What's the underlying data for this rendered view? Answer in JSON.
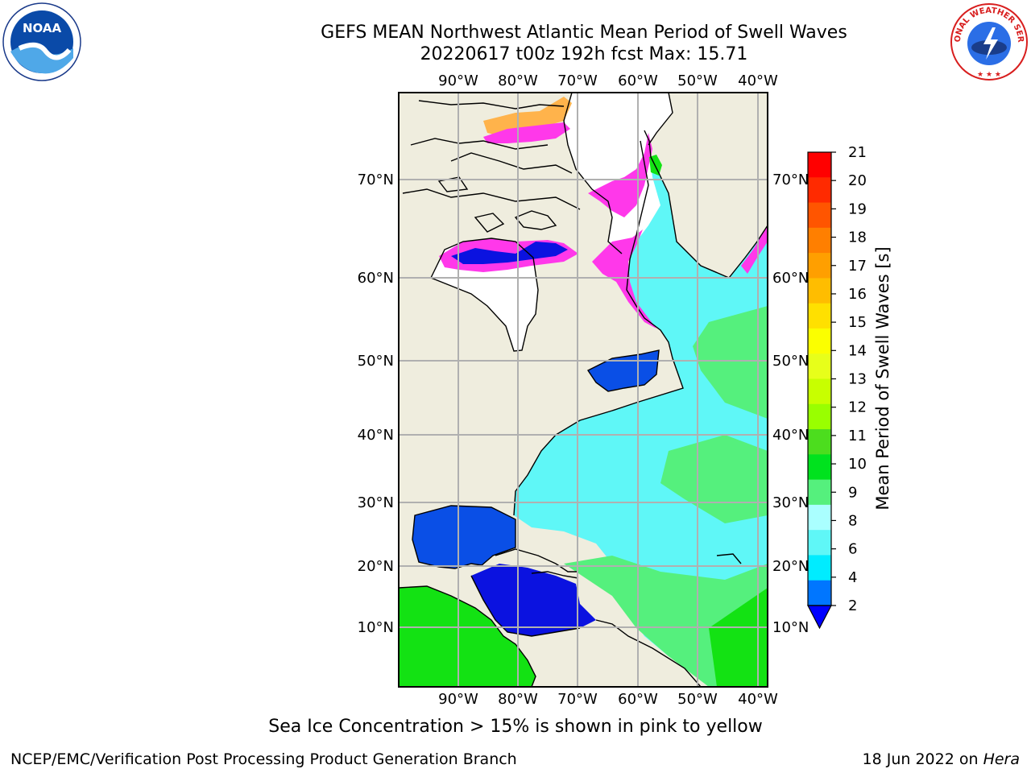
{
  "title": {
    "line1": "GEFS MEAN Northwest Atlantic Mean Period of Swell Waves",
    "line2": "20220617 t00z 192h fcst   Max: 15.71"
  },
  "map": {
    "lon_labels": [
      "90°W",
      "80°W",
      "70°W",
      "60°W",
      "50°W",
      "40°W"
    ],
    "lat_labels": [
      "70°N",
      "60°N",
      "50°N",
      "40°N",
      "30°N",
      "20°N",
      "10°N"
    ],
    "colors": {
      "land": "#efedde",
      "ice_white": "#ffffff",
      "ocean_light_cyan": "#5ff7f7",
      "ocean_cyan": "#00ecff",
      "ocean_green": "#55f07d",
      "ocean_bright_green": "#13e213",
      "gulf_blue": "#0a4fe6",
      "deep_blue": "#0b12e0",
      "ice_magenta": "#ff38ea",
      "ice_orange": "#ffb34b",
      "gridline": "#b0b0b0",
      "coastline": "#000000"
    }
  },
  "colorbar": {
    "label": "Mean Period of Swell Waves [s]",
    "ticks": [
      "21",
      "20",
      "19",
      "18",
      "17",
      "16",
      "15",
      "14",
      "13",
      "12",
      "11",
      "10",
      "9",
      "8",
      "6",
      "4",
      "2"
    ],
    "bands": [
      "#ff0000",
      "#ff2a00",
      "#ff5500",
      "#ff7f00",
      "#ff9f00",
      "#ffbd00",
      "#ffe000",
      "#fbff00",
      "#e7ff1a",
      "#c8ff00",
      "#99ff00",
      "#4cdd1e",
      "#00e21e",
      "#55f07d",
      "#aaffff",
      "#5ff7f7",
      "#00ecff",
      "#0076ff"
    ],
    "arrow_color": "#0000ff"
  },
  "logos": {
    "left_text": "NOAA",
    "right_text": "NATIONAL WEATHER SERVICE"
  },
  "footer": {
    "note": "Sea Ice Concentration > 15% is shown in pink to yellow",
    "left": "NCEP/EMC/Verification Post Processing Product Generation Branch",
    "right_prefix": "18 Jun 2022 on ",
    "right_system": "Hera"
  }
}
